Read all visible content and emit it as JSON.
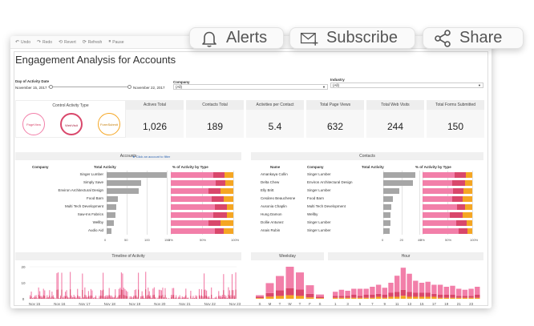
{
  "top_actions": {
    "alerts_label": "Alerts",
    "subscribe_label": "Subscribe",
    "share_label": "Share"
  },
  "toolbar": {
    "undo_label": "Undo",
    "redo_label": "Redo",
    "revert_label": "Revert",
    "refresh_label": "Refresh",
    "pause_label": "Pause"
  },
  "dashboard": {
    "title": "Engagement Analysis for Accounts"
  },
  "filters": {
    "date_label": "Day of Activity Date",
    "date_start": "November 15, 2017",
    "date_end": "November 22, 2017",
    "company_label": "Company",
    "company_value": "(All)",
    "industry_label": "Industry",
    "industry_value": "(All)"
  },
  "control": {
    "title": "Control Activity Type",
    "buttons": [
      "PageView",
      "WebVisit",
      "FormSubmit"
    ]
  },
  "kpis": [
    {
      "label": "Actives Total",
      "value": "1,026"
    },
    {
      "label": "Contacts Total",
      "value": "189"
    },
    {
      "label": "Activities per Contact",
      "value": "5.4"
    },
    {
      "label": "Total Page Views",
      "value": "632"
    },
    {
      "label": "Total Web Visits",
      "value": "244"
    },
    {
      "label": "Total Forms Submitted",
      "value": "150"
    }
  ],
  "accounts": {
    "title": "Accounts",
    "hint": "Click an account to filter",
    "col_company": "Company",
    "col_total": "Total Activity",
    "col_pct": "% of Activity by Type",
    "rows": [
      {
        "company": "Singer Lumber",
        "total": 150,
        "pct": [
          0.68,
          0.18,
          0.14
        ]
      },
      {
        "company": "Simply Save",
        "total": 85,
        "pct": [
          0.72,
          0.15,
          0.13
        ]
      },
      {
        "company": "Environ Architectural Design",
        "total": 80,
        "pct": [
          0.6,
          0.2,
          0.2
        ]
      },
      {
        "company": "Food Barn",
        "total": 28,
        "pct": [
          0.65,
          0.2,
          0.15
        ]
      },
      {
        "company": "Multi Tech Development",
        "total": 24,
        "pct": [
          0.7,
          0.2,
          0.1
        ]
      },
      {
        "company": "Saw-Ins Fabrics",
        "total": 22,
        "pct": [
          0.68,
          0.22,
          0.1
        ]
      },
      {
        "company": "Wellby",
        "total": 18,
        "pct": [
          0.6,
          0.2,
          0.2
        ]
      },
      {
        "company": "Audio Aid",
        "total": 12,
        "pct": [
          0.7,
          0.15,
          0.15
        ]
      }
    ],
    "x_ticks_total": [
      "0",
      "50",
      "100",
      "150"
    ],
    "x_ticks_pct": [
      "0%",
      "50%",
      "100%"
    ]
  },
  "contacts": {
    "title": "Contacts",
    "col_name": "Name",
    "col_company": "Company",
    "col_total": "Total Activity",
    "col_pct": "% of Activity by Type",
    "rows": [
      {
        "name": "Amankaya Collin",
        "company": "Singer Lumber",
        "total": 40,
        "pct": [
          0.65,
          0.22,
          0.13
        ]
      },
      {
        "name": "Delta Chew",
        "company": "Environ Architectural Design",
        "total": 37,
        "pct": [
          0.6,
          0.25,
          0.15
        ]
      },
      {
        "name": "Elly Britt",
        "company": "Singer Lumber",
        "total": 20,
        "pct": [
          0.62,
          0.2,
          0.18
        ]
      },
      {
        "name": "Cesáreo Beauchesne",
        "company": "Food Barn",
        "total": 12,
        "pct": [
          0.6,
          0.2,
          0.2
        ]
      },
      {
        "name": "Ausonia Chaplin",
        "company": "Multi Tech Development",
        "total": 10,
        "pct": [
          0.7,
          0.15,
          0.15
        ]
      },
      {
        "name": "Hung Damon",
        "company": "Wellby",
        "total": 9,
        "pct": [
          0.55,
          0.25,
          0.2
        ]
      },
      {
        "name": "Dollie Antunez",
        "company": "Singer Lumber",
        "total": 9,
        "pct": [
          0.68,
          0.2,
          0.12
        ]
      },
      {
        "name": "Anais Rubin",
        "company": "Singer Lumber",
        "total": 8,
        "pct": [
          0.72,
          0.18,
          0.1
        ]
      }
    ],
    "x_ticks_total": [
      "0",
      "20",
      "40"
    ],
    "x_ticks_pct": [
      "0%",
      "50%",
      "100%"
    ]
  },
  "timeline": {
    "title": "Timeline of Activity",
    "y_ticks": [
      "20",
      "10",
      "0"
    ],
    "x_ticks": [
      "Nov 15",
      "Nov 16",
      "Nov 17",
      "Nov 18",
      "Nov 19",
      "Nov 20",
      "Nov 21",
      "Nov 22",
      "Nov 23"
    ]
  },
  "weekday": {
    "title": "Weekday",
    "x_ticks": [
      "S",
      "M",
      "T",
      "W",
      "T",
      "F",
      "S"
    ],
    "values": [
      [
        2,
        2,
        1
      ],
      [
        14,
        5,
        3
      ],
      [
        20,
        8,
        4
      ],
      [
        30,
        10,
        5
      ],
      [
        24,
        9,
        4
      ],
      [
        12,
        5,
        2
      ],
      [
        3,
        2,
        1
      ]
    ]
  },
  "hour": {
    "title": "Hour",
    "x_ticks": [
      "1",
      "3",
      "5",
      "7",
      "9",
      "11",
      "13",
      "15",
      "17",
      "19",
      "21",
      "23"
    ],
    "values": [
      [
        4,
        2,
        1
      ],
      [
        6,
        2,
        1
      ],
      [
        5,
        2,
        1
      ],
      [
        6,
        3,
        1
      ],
      [
        7,
        2,
        1
      ],
      [
        6,
        3,
        1
      ],
      [
        8,
        3,
        1
      ],
      [
        9,
        3,
        2
      ],
      [
        7,
        3,
        1
      ],
      [
        10,
        4,
        2
      ],
      [
        16,
        5,
        2
      ],
      [
        22,
        6,
        3
      ],
      [
        18,
        5,
        2
      ],
      [
        12,
        4,
        2
      ],
      [
        10,
        4,
        2
      ],
      [
        11,
        4,
        2
      ],
      [
        9,
        3,
        2
      ],
      [
        10,
        3,
        1
      ],
      [
        8,
        3,
        1
      ],
      [
        9,
        3,
        1
      ],
      [
        7,
        2,
        1
      ],
      [
        6,
        2,
        1
      ],
      [
        7,
        2,
        1
      ],
      [
        8,
        3,
        1
      ]
    ]
  },
  "colors": {
    "pageview": "#f27fa9",
    "webvisit": "#d9476b",
    "formsubmit": "#f5a623",
    "gray_bar": "#a6a6a6"
  }
}
